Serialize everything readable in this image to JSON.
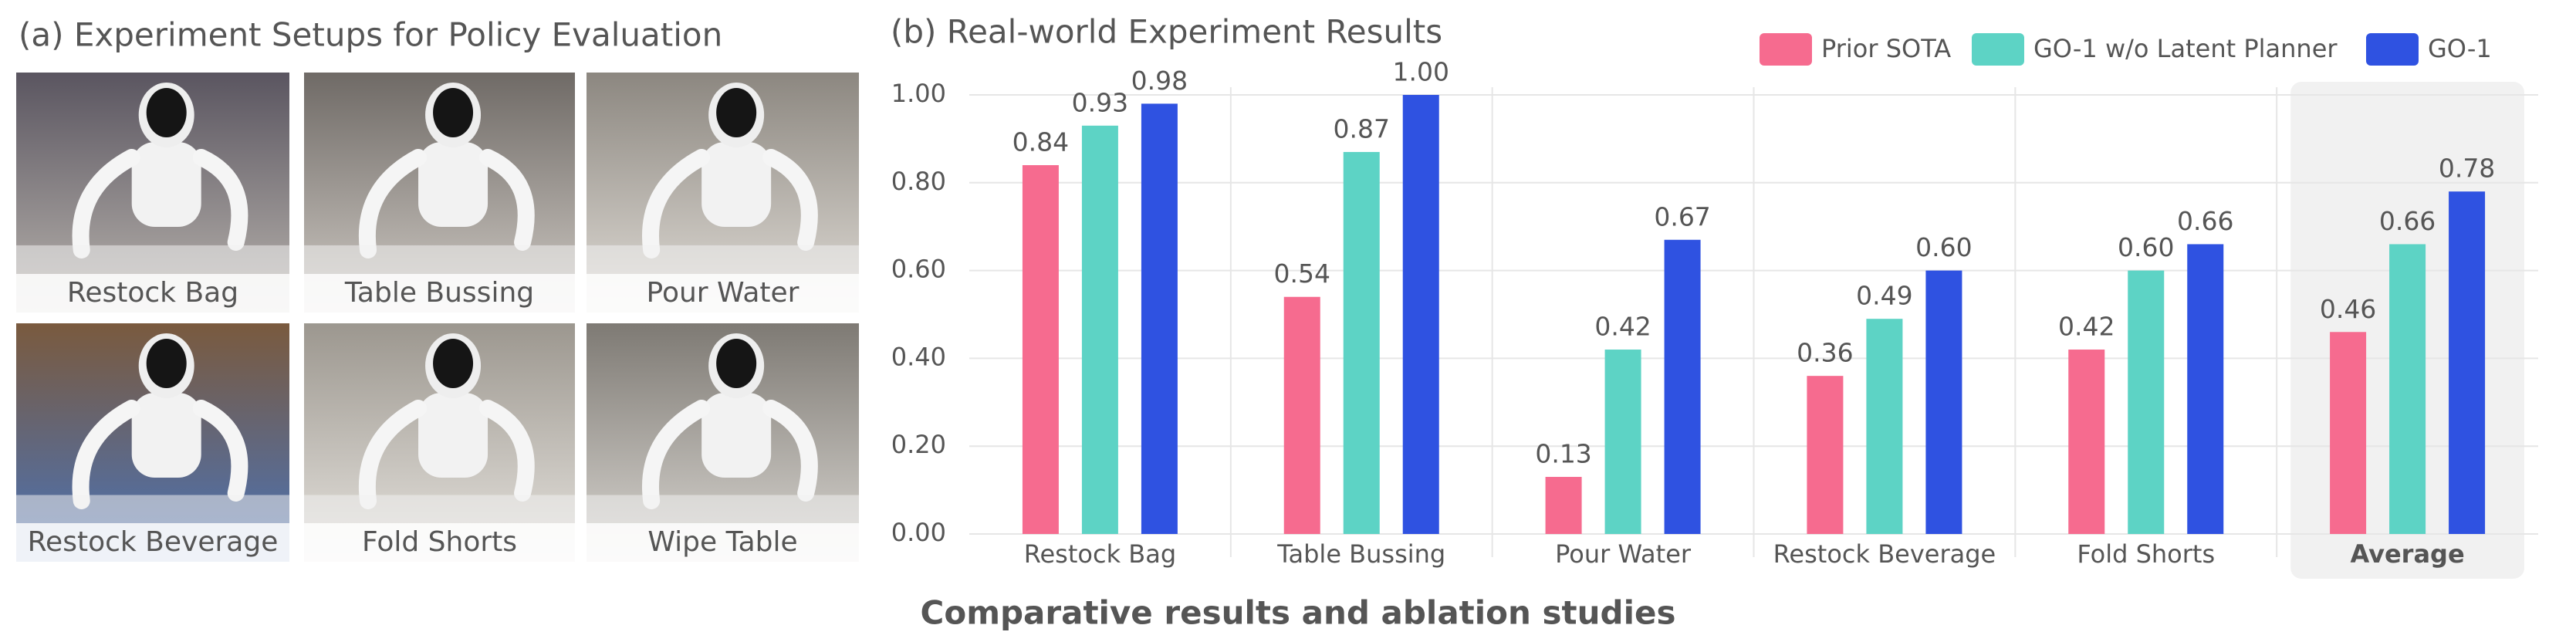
{
  "panel_a": {
    "title": "(a) Experiment Setups for Policy Evaluation",
    "images": [
      "Restock Bag",
      "Table Bussing",
      "Pour Water",
      "Restock Beverage",
      "Fold Shorts",
      "Wipe Table"
    ]
  },
  "chart_data": {
    "type": "bar",
    "title": "(b) Real-world Experiment Results",
    "xlabel": "Comparative results and ablation studies",
    "categories": [
      "Restock Bag",
      "Table Bussing",
      "Pour Water",
      "Restock Beverage",
      "Fold Shorts",
      "Average"
    ],
    "series": [
      {
        "name": "Prior SOTA",
        "color": "#f66b8f",
        "values": [
          0.84,
          0.54,
          0.13,
          0.36,
          0.42,
          0.46
        ],
        "value_labels": [
          "0.84",
          "0.54",
          "0.13",
          "0.36",
          "0.42",
          "0.46"
        ]
      },
      {
        "name": "GO-1 w/o Latent Planner",
        "color": "#5dd3c5",
        "values": [
          0.93,
          0.87,
          0.42,
          0.49,
          0.6,
          0.66
        ],
        "value_labels": [
          "0.93",
          "0.87",
          "0.42",
          "0.49",
          "0.60",
          "0.66"
        ]
      },
      {
        "name": "GO-1",
        "color": "#2f52e1",
        "values": [
          0.98,
          1.0,
          0.67,
          0.6,
          0.66,
          0.78
        ],
        "value_labels": [
          "0.98",
          "1.00",
          "0.67",
          "0.60",
          "0.66",
          "0.78"
        ]
      }
    ],
    "ylim": [
      0,
      1.0
    ],
    "yticks": [
      {
        "value": 0,
        "label": "0.00"
      },
      {
        "value": 0.2,
        "label": "0.20"
      },
      {
        "value": 0.4,
        "label": "0.40"
      },
      {
        "value": 0.6,
        "label": "0.60"
      },
      {
        "value": 0.8,
        "label": "0.80"
      },
      {
        "value": 1.0,
        "label": "1.00"
      }
    ],
    "grid": true,
    "legend": "top-right"
  }
}
